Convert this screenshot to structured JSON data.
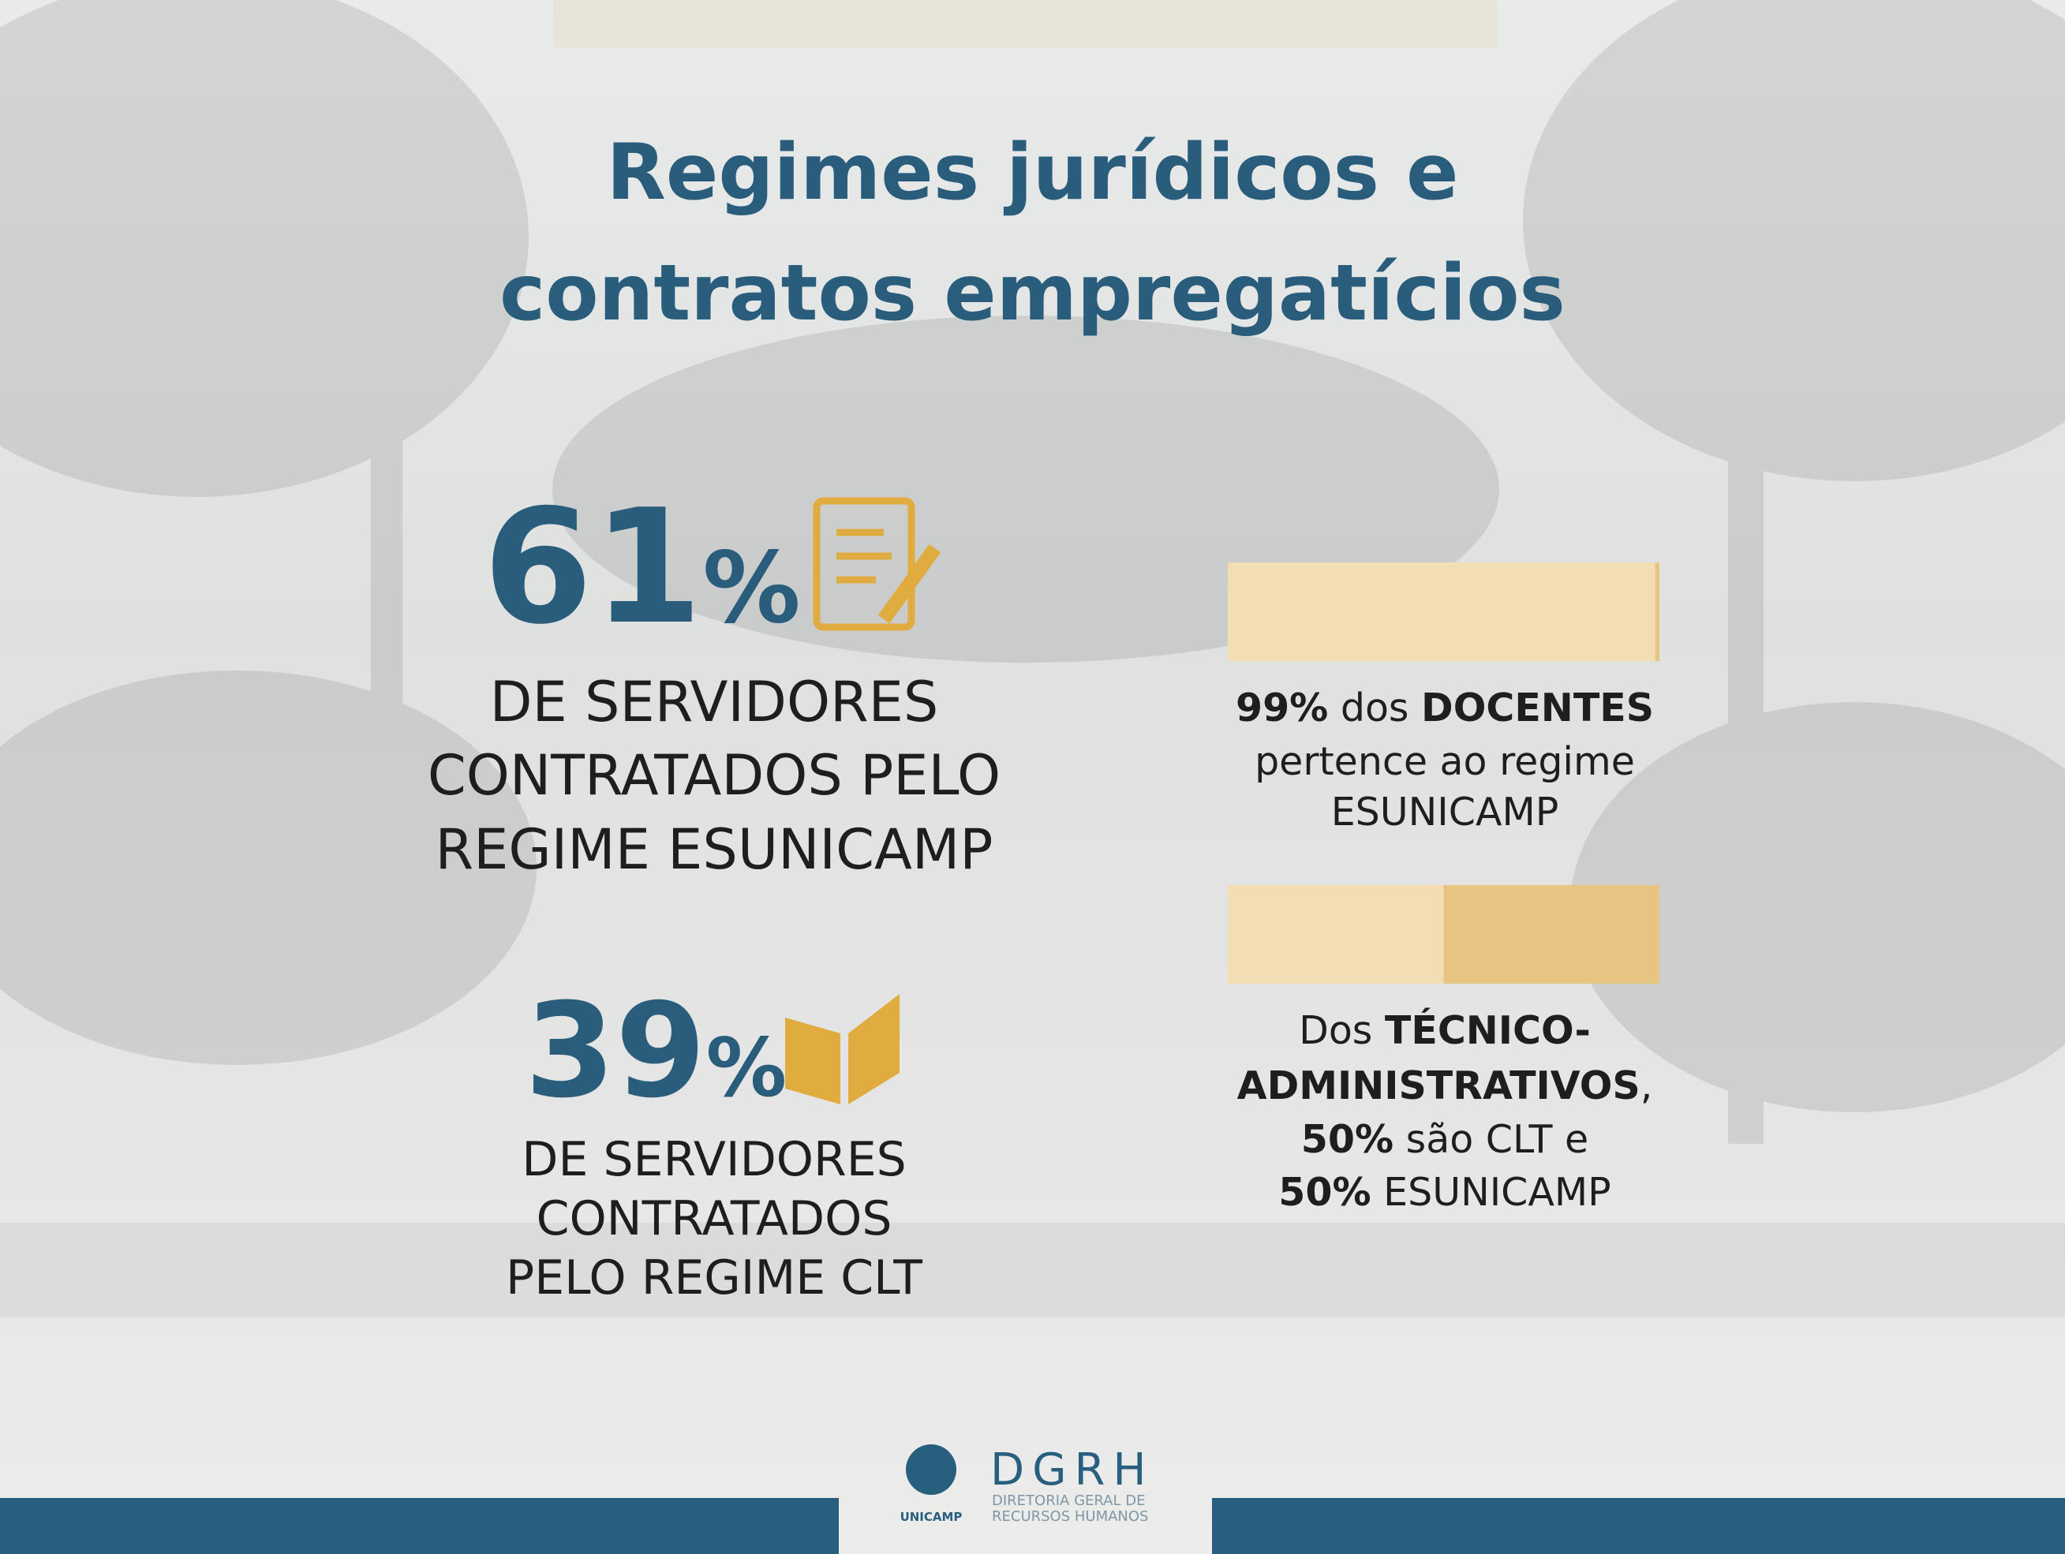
{
  "title": [
    "Regimes jurídicos e",
    "contratos empregatícios"
  ],
  "stat_esunicamp": {
    "number": "61",
    "unit": "%",
    "lines": [
      "DE SERVIDORES",
      "CONTRATADOS PELO",
      "REGIME ESUNICAMP"
    ]
  },
  "stat_clt": {
    "number": "39",
    "unit": "%",
    "lines": [
      "DE SERVIDORES",
      "CONTRATADOS",
      "PELO REGIME CLT"
    ]
  },
  "docentes": {
    "bar": {
      "segments": [
        99,
        1
      ],
      "colors": [
        "#f3ddb3",
        "#e8c483"
      ]
    },
    "lines": [
      [
        "99%",
        "dos",
        "DOCENTES"
      ],
      [
        "pertence ao regime"
      ],
      [
        "ESUNICAMP"
      ]
    ]
  },
  "tecnicos": {
    "bar": {
      "segments": [
        50,
        50
      ],
      "colors": [
        "#f3ddb3",
        "#e8c483"
      ]
    },
    "lines": [
      [
        "Dos",
        "TÉCNICO-"
      ],
      [
        "ADMINISTRATIVOS",
        ","
      ],
      [
        "50%",
        "são CLT e"
      ],
      [
        "50%",
        "ESUNICAMP"
      ]
    ]
  },
  "footer": {
    "brand": "DGRH",
    "subtitle": [
      "DIRETORIA GERAL DE",
      "RECURSOS HUMANOS"
    ],
    "university": "UNICAMP"
  }
}
